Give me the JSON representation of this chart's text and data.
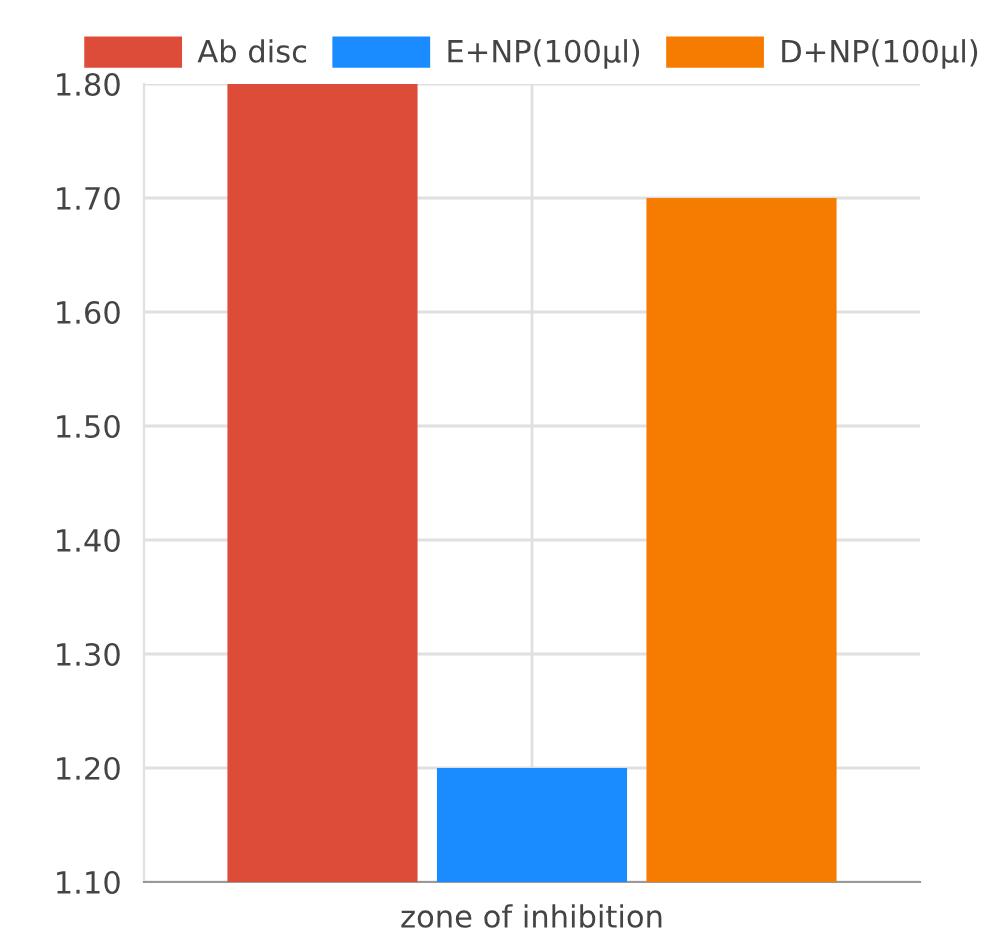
{
  "chart_data": {
    "type": "bar",
    "categories": [
      "zone of inhibition"
    ],
    "series": [
      {
        "name": "Ab disc",
        "color": "#dd4b39",
        "values": [
          1.8
        ]
      },
      {
        "name": "E+NP(100µl)",
        "color": "#1a8cff",
        "values": [
          1.2
        ]
      },
      {
        "name": "D+NP(100µl)",
        "color": "#f57c00",
        "values": [
          1.7
        ]
      }
    ],
    "ylim": [
      1.1,
      1.8
    ],
    "yticks": [
      {
        "value": 1.1,
        "label": "1.10"
      },
      {
        "value": 1.2,
        "label": "1.20"
      },
      {
        "value": 1.3,
        "label": "1.30"
      },
      {
        "value": 1.4,
        "label": "1.40"
      },
      {
        "value": 1.5,
        "label": "1.50"
      },
      {
        "value": 1.6,
        "label": "1.60"
      },
      {
        "value": 1.7,
        "label": "1.70"
      },
      {
        "value": 1.8,
        "label": "1.80"
      }
    ],
    "grid": true,
    "legend": "top"
  }
}
